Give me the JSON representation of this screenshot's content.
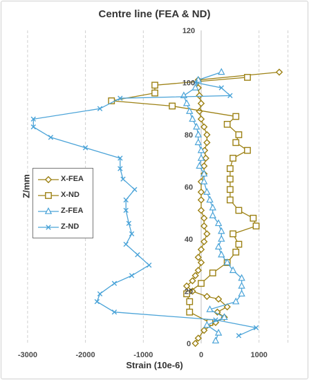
{
  "chart_data": {
    "type": "scatter",
    "title": "Centre line (FEA & ND)",
    "xlabel": "Strain (10e-6)",
    "ylabel": "Z/mm",
    "xlim": [
      -3000,
      1500
    ],
    "ylim": [
      0,
      120
    ],
    "xticks": [
      "-3000",
      "-2000",
      "-1000",
      "0",
      "1000"
    ],
    "yticks": [
      "0",
      "20",
      "40",
      "60",
      "80",
      "100",
      "120"
    ],
    "grid": "vertical dashed",
    "legend_position": "left-middle",
    "series": [
      {
        "name": "X-FEA",
        "color": "#9c8012",
        "marker": "diamond",
        "points": [
          [
            -100,
            0
          ],
          [
            -50,
            2
          ],
          [
            50,
            5
          ],
          [
            250,
            8
          ],
          [
            400,
            10
          ],
          [
            280,
            12
          ],
          [
            450,
            14
          ],
          [
            300,
            17
          ],
          [
            100,
            18
          ],
          [
            -150,
            20
          ],
          [
            -250,
            22
          ],
          [
            -150,
            24
          ],
          [
            -100,
            26
          ],
          [
            -50,
            28
          ],
          [
            0,
            31
          ],
          [
            -50,
            33
          ],
          [
            0,
            36
          ],
          [
            50,
            39
          ],
          [
            100,
            42
          ],
          [
            50,
            45
          ],
          [
            50,
            48
          ],
          [
            0,
            51
          ],
          [
            0,
            55
          ],
          [
            0,
            58
          ],
          [
            0,
            62
          ],
          [
            50,
            65
          ],
          [
            50,
            68
          ],
          [
            80,
            71
          ],
          [
            60,
            74
          ],
          [
            100,
            77
          ],
          [
            100,
            80
          ],
          [
            50,
            83
          ],
          [
            0,
            86
          ],
          [
            -30,
            89
          ],
          [
            0,
            92
          ],
          [
            -30,
            95
          ],
          [
            -50,
            98
          ],
          [
            -50,
            101
          ],
          [
            1350,
            104
          ]
        ]
      },
      {
        "name": "X-ND",
        "color": "#9c8012",
        "marker": "square",
        "points": [
          [
            150,
            8
          ],
          [
            -200,
            12
          ],
          [
            -200,
            16
          ],
          [
            -250,
            19
          ],
          [
            0,
            23
          ],
          [
            200,
            27
          ],
          [
            450,
            31
          ],
          [
            600,
            35
          ],
          [
            650,
            38
          ],
          [
            550,
            42
          ],
          [
            950,
            45
          ],
          [
            900,
            48
          ],
          [
            650,
            51
          ],
          [
            500,
            55
          ],
          [
            500,
            59
          ],
          [
            500,
            63
          ],
          [
            500,
            67
          ],
          [
            550,
            71
          ],
          [
            800,
            74
          ],
          [
            600,
            77
          ],
          [
            650,
            80
          ],
          [
            450,
            84
          ],
          [
            600,
            87
          ],
          [
            -500,
            91
          ],
          [
            -1550,
            93
          ],
          [
            -800,
            96
          ],
          [
            -800,
            99
          ],
          [
            800,
            102
          ]
        ]
      },
      {
        "name": "Z-FEA",
        "color": "#4aa3d8",
        "marker": "triangle",
        "points": [
          [
            250,
            1
          ],
          [
            300,
            4
          ],
          [
            100,
            7
          ],
          [
            400,
            10
          ],
          [
            150,
            13
          ],
          [
            600,
            16
          ],
          [
            700,
            19
          ],
          [
            700,
            22
          ],
          [
            700,
            25
          ],
          [
            550,
            28
          ],
          [
            450,
            31
          ],
          [
            350,
            34
          ],
          [
            300,
            37
          ],
          [
            350,
            40
          ],
          [
            350,
            43
          ],
          [
            300,
            46
          ],
          [
            200,
            49
          ],
          [
            200,
            52
          ],
          [
            150,
            55
          ],
          [
            100,
            58
          ],
          [
            50,
            62
          ],
          [
            50,
            65
          ],
          [
            -30,
            68
          ],
          [
            0,
            71
          ],
          [
            0,
            74
          ],
          [
            -50,
            77
          ],
          [
            -50,
            80
          ],
          [
            -80,
            83
          ],
          [
            -150,
            86
          ],
          [
            -200,
            89
          ],
          [
            -250,
            92
          ],
          [
            -300,
            95
          ],
          [
            -100,
            98
          ],
          [
            -50,
            101
          ],
          [
            350,
            104
          ]
        ]
      },
      {
        "name": "Z-ND",
        "color": "#4aa3d8",
        "marker": "x",
        "points": [
          [
            650,
            3
          ],
          [
            950,
            6
          ],
          [
            250,
            9
          ],
          [
            -1500,
            12
          ],
          [
            -1800,
            16
          ],
          [
            -1750,
            19
          ],
          [
            -1500,
            23
          ],
          [
            -1200,
            26
          ],
          [
            -900,
            30
          ],
          [
            -1100,
            34
          ],
          [
            -1300,
            38
          ],
          [
            -1200,
            42
          ],
          [
            -1250,
            46
          ],
          [
            -1300,
            51
          ],
          [
            -1300,
            55
          ],
          [
            -1150,
            59
          ],
          [
            -1350,
            63
          ],
          [
            -1400,
            67
          ],
          [
            -1400,
            71
          ],
          [
            -2000,
            75
          ],
          [
            -2600,
            79
          ],
          [
            -2900,
            83
          ],
          [
            -2900,
            86
          ],
          [
            -1750,
            90
          ],
          [
            -1400,
            94
          ],
          [
            500,
            95
          ],
          [
            350,
            98
          ],
          [
            -100,
            100
          ]
        ]
      }
    ]
  }
}
